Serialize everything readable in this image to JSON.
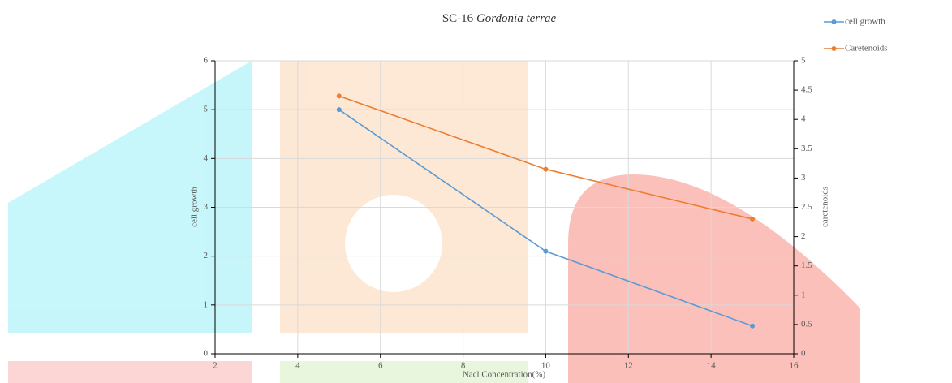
{
  "chart_data": {
    "type": "line",
    "title_parts": [
      "SC-16",
      "Gordonia terrae"
    ],
    "x_label": "Nacl Concentration(%)",
    "y_label": "cell growth",
    "y2_label": "caretenoids",
    "x": [
      5,
      10,
      15
    ],
    "series": [
      {
        "name": "cell growth",
        "color": "#5b9bd5",
        "values": [
          5,
          2.1,
          0.57
        ]
      },
      {
        "name": "Caretenoids",
        "color": "#ed7d31",
        "values": [
          4.4,
          3.15,
          2.3
        ],
        "axis": "y2"
      }
    ],
    "xlim": [
      2,
      16
    ],
    "xticks": [
      2,
      4,
      6,
      8,
      10,
      12,
      14,
      16
    ],
    "ylim": [
      0,
      6
    ],
    "yticks": [
      0,
      1,
      2,
      3,
      4,
      5,
      6
    ],
    "y2lim": [
      0,
      5
    ],
    "y2ticks": [
      0,
      0.5,
      1,
      1.5,
      2,
      2.5,
      3,
      3.5,
      4,
      4.5,
      5
    ],
    "grid": true,
    "legend": "top-right"
  }
}
